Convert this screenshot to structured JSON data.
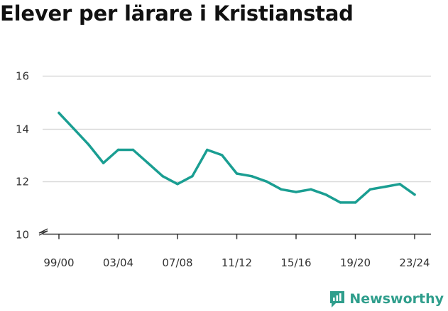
{
  "title": "Elever per lärare i Kristianstad",
  "brand": {
    "name": "Newsworthy",
    "icon": "newsworthy-logo-icon",
    "color": "#2f9e8c"
  },
  "colors": {
    "line": "#1a9e92",
    "grid": "#d9d9d9",
    "axis": "#333333"
  },
  "chart_data": {
    "type": "line",
    "title": "Elever per lärare i Kristianstad",
    "xlabel": "",
    "ylabel": "",
    "x": [
      "99/00",
      "00/01",
      "01/02",
      "02/03",
      "03/04",
      "04/05",
      "05/06",
      "06/07",
      "07/08",
      "08/09",
      "09/10",
      "10/11",
      "11/12",
      "12/13",
      "13/14",
      "14/15",
      "15/16",
      "16/17",
      "17/18",
      "18/19",
      "19/20",
      "20/21",
      "21/22",
      "22/23",
      "23/24"
    ],
    "series": [
      {
        "values": [
          14.6,
          14.0,
          13.4,
          12.7,
          13.2,
          13.2,
          12.7,
          12.2,
          11.9,
          12.2,
          13.2,
          13.0,
          12.3,
          12.2,
          12.0,
          11.7,
          11.6,
          11.7,
          11.5,
          11.2,
          11.2,
          11.7,
          11.8,
          11.9,
          11.5
        ]
      }
    ],
    "x_tick_labels": [
      "99/00",
      "03/04",
      "07/08",
      "11/12",
      "15/16",
      "19/20",
      "23/24"
    ],
    "y_ticks": [
      10,
      12,
      14,
      16
    ],
    "ylim": [
      10,
      16.4
    ],
    "y_axis_break": true,
    "grid": true,
    "legend": "none"
  }
}
